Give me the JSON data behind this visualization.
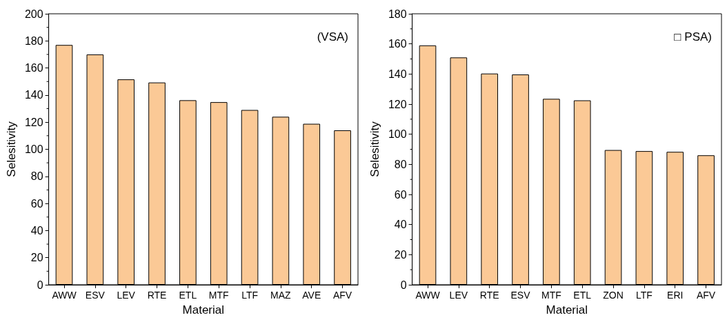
{
  "chart_data": [
    {
      "type": "bar",
      "xlabel": "Material",
      "ylabel": "Selesitivity",
      "annotations": [
        "(VSA)"
      ],
      "categories": [
        "AWW",
        "ESV",
        "LEV",
        "RTE",
        "ETL",
        "MTF",
        "LTF",
        "MAZ",
        "AVE",
        "AFV"
      ],
      "color": "#fbc996",
      "values": [
        177,
        170,
        151.6,
        149.3,
        136.2,
        134.8,
        129,
        124,
        118.8,
        114
      ],
      "ylim": [
        0,
        200
      ],
      "yticks": [
        0,
        20,
        40,
        60,
        80,
        100,
        120,
        140,
        160,
        180,
        200
      ],
      "grid": false
    },
    {
      "type": "bar",
      "xlabel": "Material",
      "ylabel": "Selesitivity",
      "annotations": [
        "□ PSA)"
      ],
      "categories": [
        "AWW",
        "LEV",
        "RTE",
        "ESV",
        "MTF",
        "ETL",
        "ZON",
        "LTF",
        "ERI",
        "AFV"
      ],
      "color": "#fbc996",
      "values": [
        159,
        151,
        140.3,
        139.7,
        123.5,
        122.5,
        89.5,
        88.8,
        88.3,
        86
      ],
      "ylim": [
        0,
        180
      ],
      "yticks": [
        0,
        20,
        40,
        60,
        80,
        100,
        120,
        140,
        160,
        180
      ],
      "grid": false
    }
  ]
}
